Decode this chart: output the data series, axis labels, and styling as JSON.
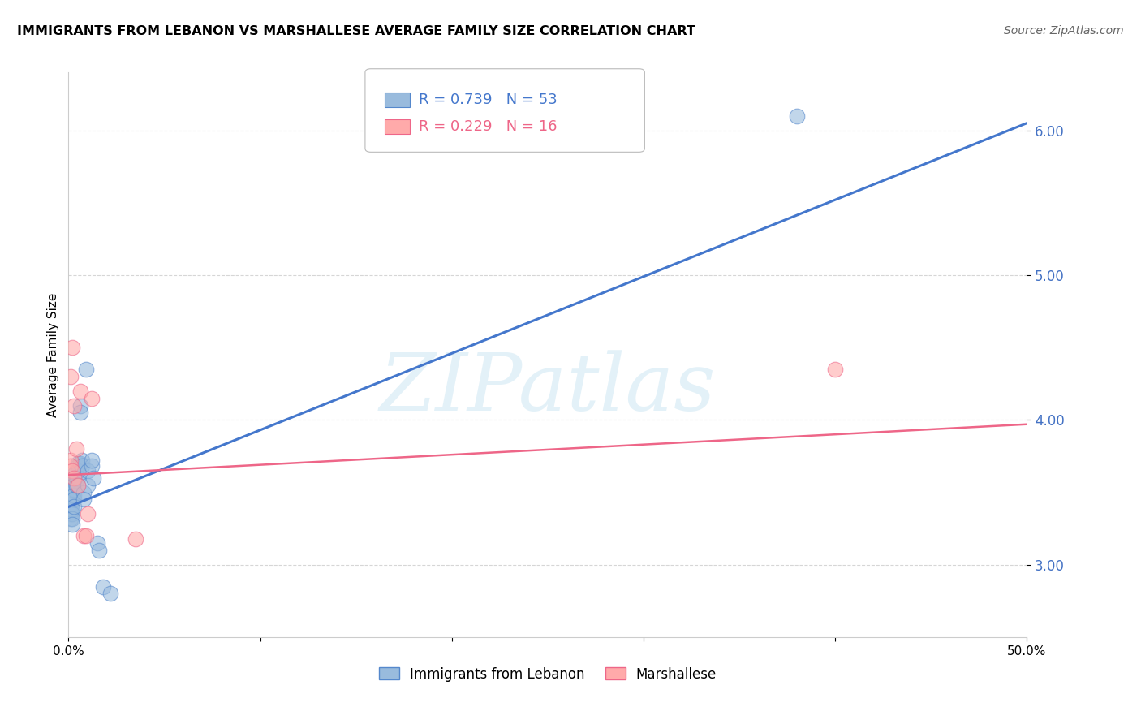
{
  "title": "IMMIGRANTS FROM LEBANON VS MARSHALLESE AVERAGE FAMILY SIZE CORRELATION CHART",
  "source": "Source: ZipAtlas.com",
  "ylabel": "Average Family Size",
  "xlim": [
    0.0,
    0.5
  ],
  "ylim": [
    2.5,
    6.4
  ],
  "yticks": [
    3.0,
    4.0,
    5.0,
    6.0
  ],
  "xticks": [
    0.0,
    0.1,
    0.2,
    0.3,
    0.4,
    0.5
  ],
  "xtick_labels": [
    "0.0%",
    "",
    "",
    "",
    "",
    "50.0%"
  ],
  "ytick_color": "#4472C4",
  "blue_fill_color": "#99BBDD",
  "blue_edge_color": "#5588CC",
  "pink_fill_color": "#FFAAAA",
  "pink_edge_color": "#EE6688",
  "blue_line_color": "#4477CC",
  "pink_line_color": "#EE6688",
  "legend_label_blue": "Immigrants from Lebanon",
  "legend_label_pink": "Marshallese",
  "watermark": "ZIPatlas",
  "blue_scatter_x": [
    0.001,
    0.001,
    0.001,
    0.001,
    0.001,
    0.001,
    0.001,
    0.001,
    0.001,
    0.001,
    0.002,
    0.002,
    0.002,
    0.002,
    0.002,
    0.002,
    0.002,
    0.002,
    0.002,
    0.002,
    0.003,
    0.003,
    0.003,
    0.003,
    0.003,
    0.003,
    0.003,
    0.004,
    0.004,
    0.004,
    0.005,
    0.005,
    0.005,
    0.005,
    0.005,
    0.006,
    0.006,
    0.006,
    0.007,
    0.007,
    0.008,
    0.008,
    0.009,
    0.01,
    0.01,
    0.012,
    0.012,
    0.013,
    0.015,
    0.016,
    0.018,
    0.022,
    0.38
  ],
  "blue_scatter_y": [
    3.5,
    3.52,
    3.55,
    3.48,
    3.45,
    3.42,
    3.4,
    3.38,
    3.35,
    3.32,
    3.55,
    3.58,
    3.5,
    3.48,
    3.45,
    3.42,
    3.38,
    3.35,
    3.32,
    3.28,
    3.6,
    3.62,
    3.55,
    3.52,
    3.48,
    3.45,
    3.4,
    3.65,
    3.6,
    3.55,
    3.7,
    3.68,
    3.65,
    3.6,
    3.55,
    4.1,
    4.05,
    3.7,
    3.72,
    3.68,
    3.5,
    3.45,
    4.35,
    3.65,
    3.55,
    3.68,
    3.72,
    3.6,
    3.15,
    3.1,
    2.85,
    2.8,
    6.1
  ],
  "pink_scatter_x": [
    0.001,
    0.001,
    0.001,
    0.002,
    0.002,
    0.003,
    0.003,
    0.004,
    0.005,
    0.006,
    0.008,
    0.009,
    0.01,
    0.012,
    0.035,
    0.4
  ],
  "pink_scatter_y": [
    3.72,
    3.68,
    4.3,
    3.65,
    4.5,
    4.1,
    3.6,
    3.8,
    3.55,
    4.2,
    3.2,
    3.2,
    3.35,
    4.15,
    3.18,
    4.35
  ],
  "blue_line_x0": 0.0,
  "blue_line_y0": 3.4,
  "blue_line_x1": 0.5,
  "blue_line_y1": 6.05,
  "pink_line_x0": 0.0,
  "pink_line_y0": 3.62,
  "pink_line_x1": 0.5,
  "pink_line_y1": 3.97,
  "title_fontsize": 11.5,
  "axis_label_fontsize": 11,
  "tick_fontsize": 11,
  "source_fontsize": 10
}
